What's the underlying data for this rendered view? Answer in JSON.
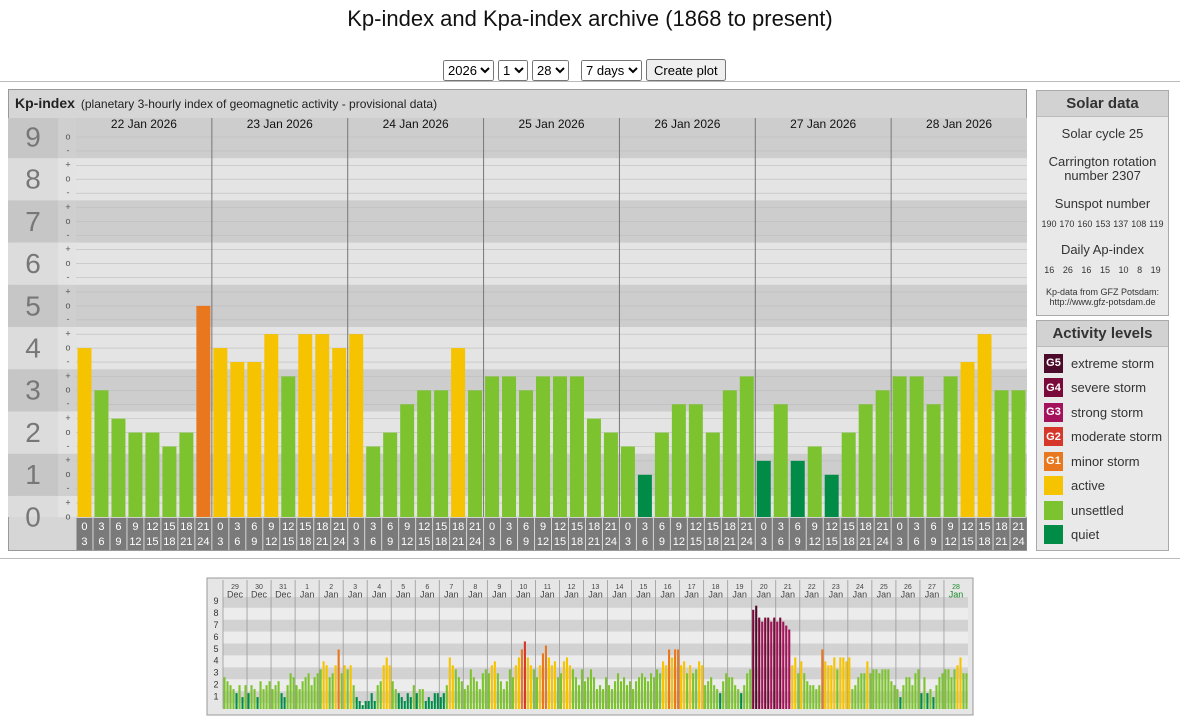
{
  "header": {
    "title": "Kp-index and Kpa-index archive (1868 to present)"
  },
  "controls": {
    "year": "2026",
    "month": "1",
    "day": "28",
    "range": "7 days",
    "button": "Create plot"
  },
  "panel": {
    "title": "Kp-index",
    "subtitle": "(planetary 3-hourly index of geomagnetic activity - provisional data)"
  },
  "solar": {
    "title": "Solar data",
    "cycle": "Solar cycle 25",
    "carrington": "Carrington rotation number 2307",
    "sunspot_title": "Sunspot number",
    "sunspot": [
      190,
      170,
      160,
      153,
      137,
      108,
      119
    ],
    "ap_title": "Daily Ap-index",
    "ap": [
      16,
      26,
      16,
      15,
      10,
      8,
      19
    ],
    "source": "Kp-data from GFZ Potsdam:",
    "url": "http://www.gfz-potsdam.de"
  },
  "activity": {
    "title": "Activity levels",
    "levels": [
      {
        "code": "G5",
        "label": "extreme storm",
        "color": "#4c0b2b"
      },
      {
        "code": "G4",
        "label": "severe storm",
        "color": "#7a0a3a"
      },
      {
        "code": "G3",
        "label": "strong storm",
        "color": "#a3125a"
      },
      {
        "code": "G2",
        "label": "moderate storm",
        "color": "#d5372a"
      },
      {
        "code": "G1",
        "label": "minor storm",
        "color": "#e8771d"
      },
      {
        "label": "active",
        "color": "#f6c300"
      },
      {
        "label": "unsettled",
        "color": "#7dc22f"
      },
      {
        "label": "quiet",
        "color": "#008c47"
      }
    ]
  },
  "chart_data": [
    {
      "type": "bar",
      "days": [
        "22 Jan 2026",
        "23 Jan 2026",
        "24 Jan 2026",
        "25 Jan 2026",
        "26 Jan 2026",
        "27 Jan 2026",
        "28 Jan 2026"
      ],
      "hours": [
        [
          "0",
          "3"
        ],
        [
          "3",
          "6"
        ],
        [
          "6",
          "9"
        ],
        [
          "9",
          "12"
        ],
        [
          "12",
          "15"
        ],
        [
          "15",
          "18"
        ],
        [
          "18",
          "21"
        ],
        [
          "21",
          "24"
        ]
      ],
      "values": [
        4,
        3,
        2.33,
        2,
        2,
        1.67,
        2,
        5,
        4,
        3.67,
        3.67,
        4.33,
        3.33,
        4.33,
        4.33,
        4,
        4.33,
        1.67,
        2,
        2.67,
        3,
        3,
        4,
        3,
        3.33,
        3.33,
        3,
        3.33,
        3.33,
        3.33,
        2.33,
        2,
        1.67,
        1,
        2,
        2.67,
        2.67,
        2,
        3,
        3.33,
        1.33,
        2.67,
        1.33,
        1.67,
        1,
        2,
        2.67,
        3,
        3.33,
        3.33,
        2.67,
        3.33,
        3.67,
        4.33,
        3,
        3
      ],
      "colors": [
        "#f6c300",
        "#7dc22f",
        "#7dc22f",
        "#7dc22f",
        "#7dc22f",
        "#7dc22f",
        "#7dc22f",
        "#e8771d",
        "#f6c300",
        "#f6c300",
        "#f6c300",
        "#f6c300",
        "#7dc22f",
        "#f6c300",
        "#f6c300",
        "#f6c300",
        "#f6c300",
        "#7dc22f",
        "#7dc22f",
        "#7dc22f",
        "#7dc22f",
        "#7dc22f",
        "#f6c300",
        "#7dc22f",
        "#7dc22f",
        "#7dc22f",
        "#7dc22f",
        "#7dc22f",
        "#7dc22f",
        "#7dc22f",
        "#7dc22f",
        "#7dc22f",
        "#7dc22f",
        "#008c47",
        "#7dc22f",
        "#7dc22f",
        "#7dc22f",
        "#7dc22f",
        "#7dc22f",
        "#7dc22f",
        "#008c47",
        "#7dc22f",
        "#008c47",
        "#7dc22f",
        "#008c47",
        "#7dc22f",
        "#7dc22f",
        "#7dc22f",
        "#7dc22f",
        "#7dc22f",
        "#7dc22f",
        "#7dc22f",
        "#f6c300",
        "#f6c300",
        "#7dc22f",
        "#7dc22f"
      ],
      "ylim": [
        0,
        9.45
      ],
      "yticks": [
        0,
        1,
        2,
        3,
        4,
        5,
        6,
        7,
        8,
        9
      ],
      "minor_ticks": [
        {
          "value": 0,
          "label": "o"
        },
        {
          "value": 0.33,
          "label": "+"
        },
        {
          "value": 0.67,
          "label": "-"
        },
        {
          "value": 1,
          "label": "o"
        },
        {
          "value": 1.33,
          "label": "+"
        },
        {
          "value": 1.67,
          "label": "-"
        },
        {
          "value": 2,
          "label": "o"
        },
        {
          "value": 2.33,
          "label": "+"
        },
        {
          "value": 2.67,
          "label": "-"
        },
        {
          "value": 3,
          "label": "o"
        },
        {
          "value": 3.33,
          "label": "+"
        },
        {
          "value": 3.67,
          "label": "-"
        },
        {
          "value": 4,
          "label": "o"
        },
        {
          "value": 4.33,
          "label": "+"
        },
        {
          "value": 4.67,
          "label": "-"
        },
        {
          "value": 5,
          "label": "o"
        },
        {
          "value": 5.33,
          "label": "+"
        },
        {
          "value": 5.67,
          "label": "-"
        },
        {
          "value": 6,
          "label": "o"
        },
        {
          "value": 6.33,
          "label": "+"
        },
        {
          "value": 6.67,
          "label": "-"
        },
        {
          "value": 7,
          "label": "o"
        },
        {
          "value": 7.33,
          "label": "+"
        },
        {
          "value": 7.67,
          "label": "-"
        },
        {
          "value": 8,
          "label": "o"
        },
        {
          "value": 8.33,
          "label": "+"
        },
        {
          "value": 8.67,
          "label": "-"
        },
        {
          "value": 9,
          "label": "o"
        }
      ]
    },
    {
      "type": "bar",
      "days": [
        {
          "day": "29",
          "month": "Dec"
        },
        {
          "day": "30",
          "month": "Dec"
        },
        {
          "day": "31",
          "month": "Dec"
        },
        {
          "day": "1",
          "month": "Jan"
        },
        {
          "day": "2",
          "month": "Jan"
        },
        {
          "day": "3",
          "month": "Jan"
        },
        {
          "day": "4",
          "month": "Jan"
        },
        {
          "day": "5",
          "month": "Jan"
        },
        {
          "day": "6",
          "month": "Jan"
        },
        {
          "day": "7",
          "month": "Jan"
        },
        {
          "day": "8",
          "month": "Jan"
        },
        {
          "day": "9",
          "month": "Jan"
        },
        {
          "day": "10",
          "month": "Jan"
        },
        {
          "day": "11",
          "month": "Jan"
        },
        {
          "day": "12",
          "month": "Jan"
        },
        {
          "day": "13",
          "month": "Jan"
        },
        {
          "day": "14",
          "month": "Jan"
        },
        {
          "day": "15",
          "month": "Jan"
        },
        {
          "day": "16",
          "month": "Jan"
        },
        {
          "day": "17",
          "month": "Jan"
        },
        {
          "day": "18",
          "month": "Jan"
        },
        {
          "day": "19",
          "month": "Jan"
        },
        {
          "day": "20",
          "month": "Jan"
        },
        {
          "day": "21",
          "month": "Jan"
        },
        {
          "day": "22",
          "month": "Jan"
        },
        {
          "day": "23",
          "month": "Jan"
        },
        {
          "day": "24",
          "month": "Jan"
        },
        {
          "day": "25",
          "month": "Jan"
        },
        {
          "day": "26",
          "month": "Jan"
        },
        {
          "day": "27",
          "month": "Jan"
        },
        {
          "day": "28",
          "month": "Jan"
        }
      ],
      "values": [
        2.67,
        2.33,
        2,
        1.67,
        1.33,
        2,
        1,
        2,
        1.33,
        2,
        1.67,
        1,
        2.33,
        1.67,
        2,
        2.33,
        1.67,
        2,
        2.33,
        1.33,
        1,
        2,
        3,
        2.67,
        2,
        1.67,
        2.33,
        2.67,
        3,
        2,
        2.67,
        3,
        3.33,
        4,
        3.67,
        2.67,
        3,
        3.67,
        5,
        3,
        3.67,
        3.33,
        3.67,
        2,
        1,
        0.67,
        0.33,
        0.67,
        0.67,
        1.33,
        0.67,
        2,
        2.33,
        3.67,
        4.33,
        3.67,
        2.33,
        1.67,
        1.33,
        1,
        0.67,
        1.33,
        1,
        2,
        1.33,
        1.67,
        1.67,
        0.67,
        1,
        0.67,
        1.33,
        1.33,
        1,
        1.33,
        2,
        4.33,
        3.67,
        3.33,
        2.67,
        2.33,
        1.67,
        2,
        3.33,
        2.67,
        2.33,
        1.67,
        3,
        3.33,
        3,
        3.67,
        4,
        3,
        2.33,
        1.67,
        2.33,
        3.33,
        2.67,
        3.67,
        4.33,
        5,
        5.67,
        4.33,
        3.67,
        3.33,
        2.67,
        3.67,
        4.67,
        5.33,
        4.33,
        3.67,
        4,
        2.67,
        3,
        4,
        4.33,
        3.67,
        3.33,
        2.67,
        2,
        3.33,
        2.33,
        2.67,
        3.33,
        2.67,
        1.67,
        2,
        1.67,
        2.67,
        2,
        1.67,
        2.33,
        3,
        2.33,
        2.67,
        2,
        2.33,
        1.67,
        2.33,
        2.67,
        3,
        2.67,
        2.33,
        3,
        2.67,
        3.33,
        3,
        4,
        3.67,
        5,
        4.33,
        5,
        5,
        3.67,
        4,
        3,
        3.67,
        3,
        3.33,
        4,
        3.67,
        2,
        2.33,
        2.67,
        2,
        1.67,
        1.33,
        2.33,
        3,
        2.67,
        2.67,
        2,
        1.67,
        1.33,
        2,
        3,
        3.33,
        8.33,
        8.67,
        7.67,
        7.33,
        7.67,
        7.67,
        7.33,
        7.67,
        7.33,
        7.67,
        7.33,
        7,
        6.67,
        3.67,
        4.33,
        3,
        4,
        3,
        2.33,
        2,
        2,
        1.67,
        2,
        5,
        4,
        3.67,
        3.67,
        4.33,
        3.33,
        4.33,
        4.33,
        4,
        4.33,
        1.67,
        2,
        2.67,
        3,
        3,
        4,
        3,
        3.33,
        3.33,
        3,
        3.33,
        3.33,
        3.33,
        2.33,
        2,
        1.67,
        1,
        2,
        2.67,
        2.67,
        2,
        3,
        3.33,
        1.33,
        2.67,
        1.33,
        1.67,
        1,
        2,
        2.67,
        3,
        3.33,
        3.33,
        2.67,
        3.33,
        3.67,
        4.33,
        3,
        3
      ],
      "colors": [
        "#7dc22f",
        "#7dc22f",
        "#7dc22f",
        "#7dc22f",
        "#008c47",
        "#7dc22f",
        "#008c47",
        "#7dc22f",
        "#008c47",
        "#7dc22f",
        "#7dc22f",
        "#008c47",
        "#7dc22f",
        "#7dc22f",
        "#7dc22f",
        "#7dc22f",
        "#7dc22f",
        "#7dc22f",
        "#7dc22f",
        "#008c47",
        "#008c47",
        "#7dc22f",
        "#7dc22f",
        "#7dc22f",
        "#7dc22f",
        "#7dc22f",
        "#7dc22f",
        "#7dc22f",
        "#7dc22f",
        "#7dc22f",
        "#7dc22f",
        "#7dc22f",
        "#7dc22f",
        "#f6c300",
        "#f6c300",
        "#7dc22f",
        "#7dc22f",
        "#f6c300",
        "#e8771d",
        "#7dc22f",
        "#f6c300",
        "#7dc22f",
        "#f6c300",
        "#7dc22f",
        "#008c47",
        "#008c47",
        "#008c47",
        "#008c47",
        "#008c47",
        "#008c47",
        "#008c47",
        "#7dc22f",
        "#7dc22f",
        "#f6c300",
        "#f6c300",
        "#f6c300",
        "#7dc22f",
        "#7dc22f",
        "#008c47",
        "#008c47",
        "#008c47",
        "#008c47",
        "#008c47",
        "#7dc22f",
        "#008c47",
        "#7dc22f",
        "#7dc22f",
        "#008c47",
        "#008c47",
        "#008c47",
        "#008c47",
        "#008c47",
        "#008c47",
        "#008c47",
        "#7dc22f",
        "#f6c300",
        "#f6c300",
        "#7dc22f",
        "#7dc22f",
        "#7dc22f",
        "#7dc22f",
        "#7dc22f",
        "#7dc22f",
        "#7dc22f",
        "#7dc22f",
        "#7dc22f",
        "#7dc22f",
        "#7dc22f",
        "#7dc22f",
        "#f6c300",
        "#f6c300",
        "#7dc22f",
        "#7dc22f",
        "#7dc22f",
        "#7dc22f",
        "#7dc22f",
        "#7dc22f",
        "#f6c300",
        "#f6c300",
        "#e8771d",
        "#d5372a",
        "#f6c300",
        "#f6c300",
        "#7dc22f",
        "#7dc22f",
        "#f6c300",
        "#e8771d",
        "#e8771d",
        "#f6c300",
        "#f6c300",
        "#f6c300",
        "#7dc22f",
        "#7dc22f",
        "#f6c300",
        "#f6c300",
        "#f6c300",
        "#7dc22f",
        "#7dc22f",
        "#7dc22f",
        "#7dc22f",
        "#7dc22f",
        "#7dc22f",
        "#7dc22f",
        "#7dc22f",
        "#7dc22f",
        "#7dc22f",
        "#7dc22f",
        "#7dc22f",
        "#7dc22f",
        "#7dc22f",
        "#7dc22f",
        "#7dc22f",
        "#7dc22f",
        "#7dc22f",
        "#7dc22f",
        "#7dc22f",
        "#7dc22f",
        "#7dc22f",
        "#7dc22f",
        "#7dc22f",
        "#7dc22f",
        "#7dc22f",
        "#7dc22f",
        "#7dc22f",
        "#7dc22f",
        "#7dc22f",
        "#f6c300",
        "#f6c300",
        "#e8771d",
        "#f6c300",
        "#e8771d",
        "#e8771d",
        "#f6c300",
        "#f6c300",
        "#7dc22f",
        "#f6c300",
        "#7dc22f",
        "#7dc22f",
        "#f6c300",
        "#f6c300",
        "#7dc22f",
        "#7dc22f",
        "#7dc22f",
        "#7dc22f",
        "#7dc22f",
        "#008c47",
        "#7dc22f",
        "#7dc22f",
        "#7dc22f",
        "#7dc22f",
        "#7dc22f",
        "#7dc22f",
        "#008c47",
        "#7dc22f",
        "#7dc22f",
        "#7dc22f",
        "#7a0a3a",
        "#4c0b2b",
        "#7a0a3a",
        "#a3125a",
        "#7a0a3a",
        "#7a0a3a",
        "#a3125a",
        "#7a0a3a",
        "#a3125a",
        "#7a0a3a",
        "#a3125a",
        "#a3125a",
        "#a3125a",
        "#f6c300",
        "#f6c300",
        "#7dc22f",
        "#f6c300",
        "#7dc22f",
        "#7dc22f",
        "#7dc22f",
        "#7dc22f",
        "#7dc22f",
        "#7dc22f",
        "#e8771d",
        "#f6c300",
        "#f6c300",
        "#f6c300",
        "#f6c300",
        "#7dc22f",
        "#f6c300",
        "#f6c300",
        "#f6c300",
        "#f6c300",
        "#7dc22f",
        "#7dc22f",
        "#7dc22f",
        "#7dc22f",
        "#7dc22f",
        "#f6c300",
        "#7dc22f",
        "#7dc22f",
        "#7dc22f",
        "#7dc22f",
        "#7dc22f",
        "#7dc22f",
        "#7dc22f",
        "#7dc22f",
        "#7dc22f",
        "#7dc22f",
        "#008c47",
        "#7dc22f",
        "#7dc22f",
        "#7dc22f",
        "#7dc22f",
        "#7dc22f",
        "#7dc22f",
        "#008c47",
        "#7dc22f",
        "#008c47",
        "#7dc22f",
        "#008c47",
        "#7dc22f",
        "#7dc22f",
        "#7dc22f",
        "#7dc22f",
        "#7dc22f",
        "#7dc22f",
        "#7dc22f",
        "#f6c300",
        "#f6c300",
        "#7dc22f",
        "#7dc22f"
      ],
      "ylim": [
        0,
        9.4
      ],
      "yticks": [
        1,
        2,
        3,
        4,
        5,
        6,
        7,
        8,
        9
      ]
    }
  ]
}
